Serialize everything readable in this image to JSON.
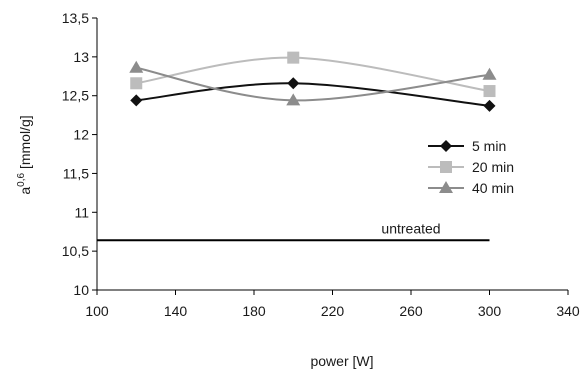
{
  "chart_data": {
    "type": "line",
    "title": "",
    "xlabel": "power [W]",
    "ylabel_base": "a",
    "ylabel_sup": "0,6",
    "ylabel_rest": " [mmol/g]",
    "xlim": [
      100,
      340
    ],
    "ylim": [
      10,
      13.5
    ],
    "x_ticks": [
      100,
      140,
      180,
      220,
      260,
      300,
      340
    ],
    "x_tick_labels": [
      "100",
      "140",
      "180",
      "220",
      "260",
      "300",
      "340"
    ],
    "y_ticks": [
      10,
      10.5,
      11,
      11.5,
      12,
      12.5,
      13,
      13.5
    ],
    "y_tick_labels": [
      "10",
      "10,5",
      "11",
      "11,5",
      "12",
      "12,5",
      "13",
      "13,5"
    ],
    "grid": false,
    "legend_position": "right",
    "smooth_lines": true,
    "series": [
      {
        "name": "5 min",
        "x": [
          120,
          200,
          300
        ],
        "y": [
          12.44,
          12.66,
          12.37
        ],
        "color": "#111111",
        "marker": "diamond"
      },
      {
        "name": "20 min",
        "x": [
          120,
          200,
          300
        ],
        "y": [
          12.66,
          12.99,
          12.56
        ],
        "color": "#bcbcbc",
        "marker": "square"
      },
      {
        "name": "40 min",
        "x": [
          120,
          200,
          300
        ],
        "y": [
          12.86,
          12.44,
          12.77
        ],
        "color": "#8c8c8c",
        "marker": "triangle"
      }
    ],
    "reference_line": {
      "label": "untreated",
      "y": 10.64,
      "x_range": [
        100,
        300
      ],
      "color": "#000000"
    }
  }
}
